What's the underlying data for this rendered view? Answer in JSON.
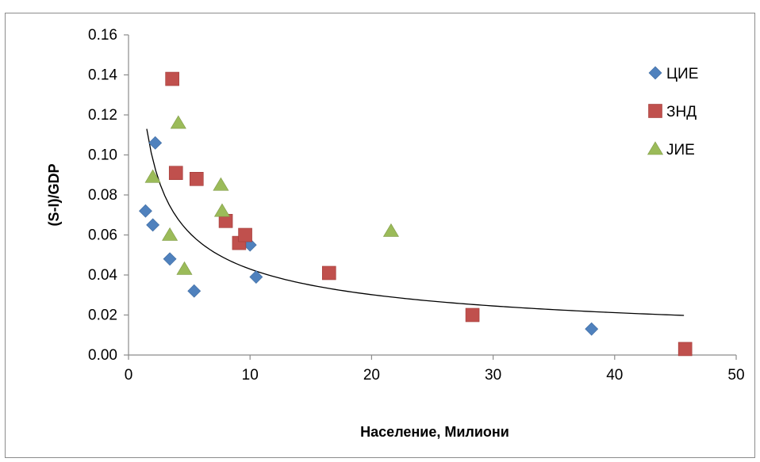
{
  "chart_data": {
    "type": "scatter",
    "title": "",
    "xlabel": "Население, Милиони",
    "ylabel": "(S-I)/GDP",
    "xlim": [
      0,
      50
    ],
    "ylim": [
      0,
      0.16
    ],
    "x_ticks": [
      "0",
      "10",
      "20",
      "30",
      "40",
      "50"
    ],
    "y_ticks": [
      "0.00",
      "0.02",
      "0.04",
      "0.06",
      "0.08",
      "0.10",
      "0.12",
      "0.14",
      "0.16"
    ],
    "grid": false,
    "legend_position": "right",
    "series": [
      {
        "name": "ЦИЕ",
        "marker": "diamond",
        "color": "#4f81bd",
        "points": [
          [
            1.4,
            0.072
          ],
          [
            2.0,
            0.065
          ],
          [
            2.2,
            0.106
          ],
          [
            3.4,
            0.048
          ],
          [
            5.4,
            0.032
          ],
          [
            10.0,
            0.055
          ],
          [
            10.5,
            0.039
          ],
          [
            38.1,
            0.013
          ]
        ]
      },
      {
        "name": "ЗНД",
        "marker": "square",
        "color": "#c0504d",
        "points": [
          [
            3.6,
            0.138
          ],
          [
            3.9,
            0.091
          ],
          [
            5.6,
            0.088
          ],
          [
            8.0,
            0.067
          ],
          [
            9.1,
            0.056
          ],
          [
            9.6,
            0.06
          ],
          [
            16.5,
            0.041
          ],
          [
            28.3,
            0.02
          ],
          [
            45.8,
            0.003
          ]
        ]
      },
      {
        "name": "ЈИЕ",
        "marker": "triangle",
        "color": "#9bbb59",
        "points": [
          [
            2.0,
            0.089
          ],
          [
            3.4,
            0.06
          ],
          [
            4.1,
            0.116
          ],
          [
            4.6,
            0.043
          ],
          [
            7.6,
            0.085
          ],
          [
            7.7,
            0.072
          ],
          [
            21.6,
            0.062
          ]
        ]
      }
    ],
    "trendline": {
      "type": "power",
      "color": "#000000",
      "x_range": [
        1.5,
        45.7
      ],
      "a": 0.139,
      "b": -0.51
    }
  }
}
